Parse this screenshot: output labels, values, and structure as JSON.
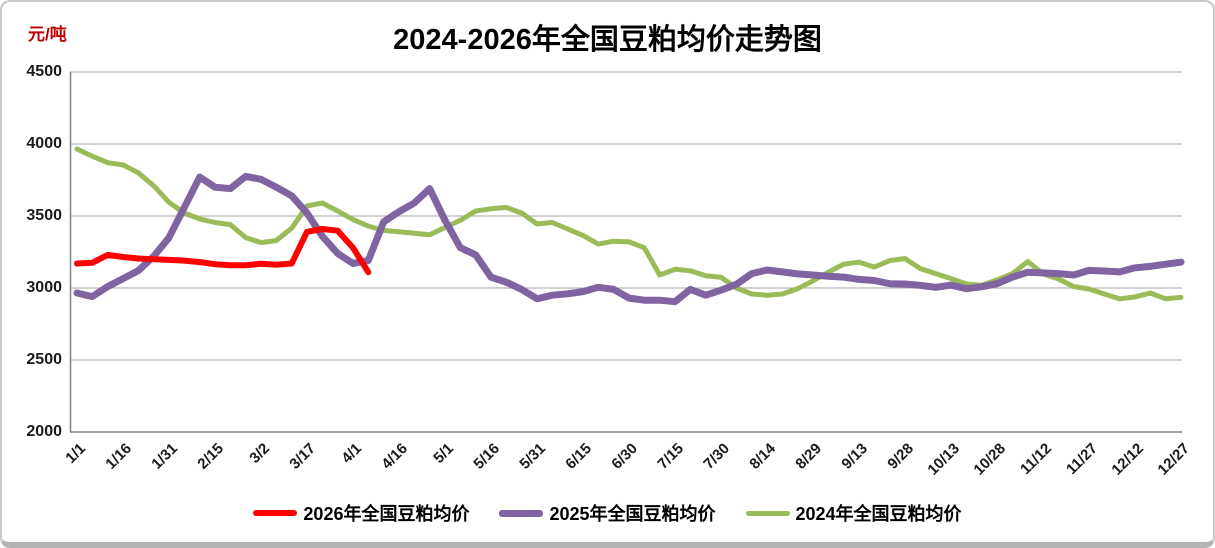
{
  "chart_data": {
    "type": "line",
    "title": "2024-2026年全国豆粕均价走势图",
    "unit_label": "元/吨",
    "grid": "horizontal-only",
    "legend_position": "bottom-center",
    "colors": {
      "axis": "#808080",
      "gridline": "#a6a6a6",
      "unit_label": "#c00000"
    },
    "y_axis": {
      "min": 2000,
      "max": 4500,
      "step": 500,
      "ticks": [
        4500,
        4000,
        3500,
        3000,
        2500,
        2000
      ]
    },
    "x_axis": {
      "tick_labels": [
        "1/1",
        "1/16",
        "1/31",
        "2/15",
        "3/2",
        "3/17",
        "4/1",
        "4/16",
        "5/1",
        "5/16",
        "5/31",
        "6/15",
        "6/30",
        "7/15",
        "7/30",
        "8/14",
        "8/29",
        "9/13",
        "9/28",
        "10/13",
        "10/28",
        "11/12",
        "11/27",
        "12/12",
        "12/27"
      ],
      "points_per_tick_interval": 3,
      "point_interval_days": 5
    },
    "series": [
      {
        "name": "2026年全国豆粕均价",
        "color": "#FF0000",
        "stroke_width": 6,
        "values": [
          3170,
          3175,
          3230,
          3215,
          3205,
          3200,
          3195,
          3190,
          3180,
          3165,
          3158,
          3158,
          3168,
          3162,
          3170,
          3390,
          3410,
          3398,
          3280,
          3110
        ]
      },
      {
        "name": "2025年全国豆粕均价",
        "color": "#8064A2",
        "stroke_width": 7,
        "values": [
          2965,
          2940,
          3010,
          3065,
          3120,
          3220,
          3350,
          3560,
          3770,
          3700,
          3690,
          3775,
          3755,
          3700,
          3640,
          3520,
          3360,
          3240,
          3170,
          3190,
          3460,
          3530,
          3590,
          3690,
          3470,
          3280,
          3230,
          3075,
          3040,
          2990,
          2925,
          2950,
          2960,
          2975,
          3005,
          2990,
          2930,
          2915,
          2915,
          2905,
          2990,
          2950,
          2985,
          3025,
          3100,
          3125,
          3112,
          3098,
          3090,
          3082,
          3076,
          3060,
          3052,
          3030,
          3028,
          3018,
          3005,
          3020,
          2995,
          3008,
          3030,
          3075,
          3110,
          3105,
          3100,
          3090,
          3122,
          3118,
          3112,
          3140,
          3150,
          3165,
          3180
        ]
      },
      {
        "name": "2024年全国豆粕均价",
        "color": "#9BBB59",
        "stroke_width": 5,
        "values": [
          3965,
          3915,
          3870,
          3855,
          3800,
          3710,
          3595,
          3520,
          3480,
          3455,
          3440,
          3350,
          3315,
          3330,
          3415,
          3570,
          3590,
          3535,
          3475,
          3430,
          3400,
          3390,
          3380,
          3370,
          3420,
          3470,
          3535,
          3550,
          3560,
          3520,
          3445,
          3455,
          3410,
          3365,
          3305,
          3325,
          3320,
          3280,
          3090,
          3130,
          3120,
          3085,
          3075,
          3000,
          2958,
          2950,
          2958,
          2995,
          3050,
          3110,
          3165,
          3180,
          3145,
          3190,
          3205,
          3135,
          3100,
          3065,
          3028,
          3019,
          3056,
          3099,
          3183,
          3099,
          3063,
          3010,
          2993,
          2958,
          2924,
          2938,
          2965,
          2925,
          2935
        ]
      }
    ]
  }
}
